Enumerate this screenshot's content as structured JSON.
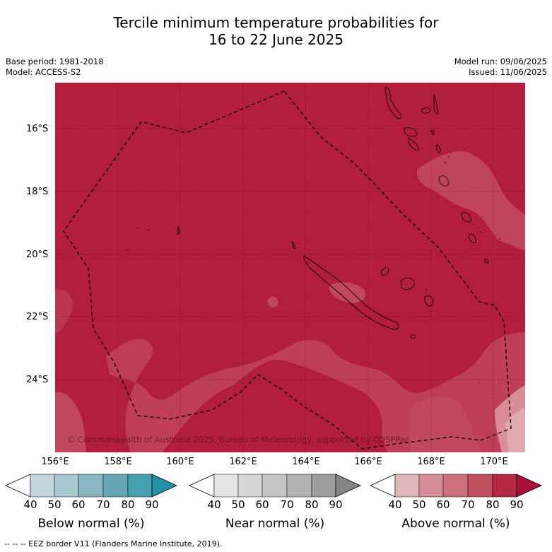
{
  "title_line1": "Tercile minimum temperature probabilities for",
  "title_line2": "16 to 22 June 2025",
  "base_period": "Base period: 1981-2018",
  "model": "Model: ACCESS-S2",
  "model_run": "Model run: 09/06/2025",
  "issued": "Issued: 11/06/2025",
  "lat_labels": [
    "16°S",
    "18°S",
    "20°S",
    "22°S",
    "24°S"
  ],
  "lon_labels": [
    "156°E",
    "158°E",
    "160°E",
    "162°E",
    "164°E",
    "166°E",
    "168°E",
    "170°E"
  ],
  "copyright": "© Commonwealth of Australia 2025, Bureau of Meteorology, supported by COSPPac",
  "colorbars": [
    {
      "label": "Below normal (%)",
      "ticks": [
        "40",
        "50",
        "60",
        "70",
        "80",
        "90"
      ],
      "colors": [
        "#ffffff",
        "#c2d6dc",
        "#a6c8ce",
        "#88b7c2",
        "#66a6b4",
        "#45a0b0",
        "#2590a5"
      ]
    },
    {
      "label": "Near normal (%)",
      "ticks": [
        "40",
        "50",
        "60",
        "70",
        "80",
        "90"
      ],
      "colors": [
        "#ffffff",
        "#e6e6e6",
        "#d6d6d6",
        "#c6c6c6",
        "#b2b2b2",
        "#9d9d9d",
        "#858585"
      ]
    },
    {
      "label": "Above normal (%)",
      "ticks": [
        "40",
        "50",
        "60",
        "70",
        "80",
        "90"
      ],
      "colors": [
        "#ffffff",
        "#e0b6bd",
        "#d78e98",
        "#cc707c",
        "#c0505f",
        "#b42a42",
        "#a8123a"
      ]
    }
  ],
  "footer": "-- -- -- EEZ border V11 (Flanders Marine Institute, 2019).",
  "map_colors": {
    "dominant": "#b21e3c",
    "lighter": "#c2495d",
    "lightest": "#d98d99"
  }
}
